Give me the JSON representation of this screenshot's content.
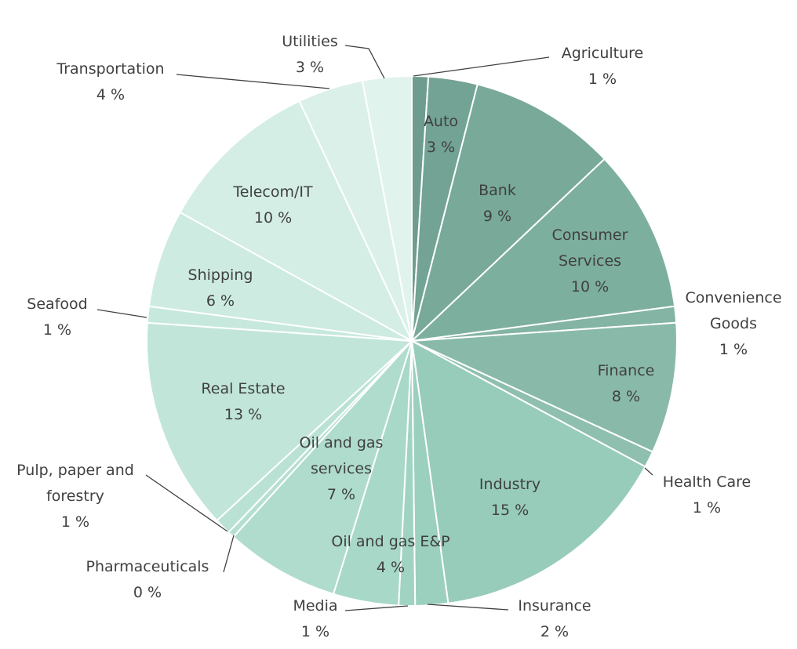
{
  "chart_data": {
    "type": "pie",
    "categories": [
      "Agriculture",
      "Auto",
      "Bank",
      "Consumer Services",
      "Convenience Goods",
      "Finance",
      "Health Care",
      "Industry",
      "Insurance",
      "Media",
      "Oil and gas E&P",
      "Oil and gas services",
      "Pharmaceuticals",
      "Pulp, paper and forestry",
      "Real Estate",
      "Seafood",
      "Shipping",
      "Telecom/IT",
      "Transportation",
      "Utilities"
    ],
    "values": [
      1,
      3,
      9,
      10,
      1,
      8,
      1,
      15,
      2,
      1,
      4,
      7,
      0.4,
      1,
      13,
      1,
      6,
      10,
      4,
      3
    ],
    "value_labels": [
      "1 %",
      "3 %",
      "9 %",
      "10 %",
      "1 %",
      "8 %",
      "1 %",
      "15 %",
      "2 %",
      "1 %",
      "4 %",
      "7 %",
      "0 %",
      "1 %",
      "13 %",
      "1 %",
      "6 %",
      "10 %",
      "4 %",
      "3 %"
    ],
    "colors": [
      "#6e9d8f",
      "#73a394",
      "#78a999",
      "#7daf9f",
      "#83b4a4",
      "#89baa9",
      "#8fbfae",
      "#97cbba",
      "#9bcfbe",
      "#a1d3c3",
      "#a8d8c8",
      "#afdccd",
      "#b5dfd1",
      "#bae2d4",
      "#c1e6d9",
      "#c7e9dd",
      "#cdebe0",
      "#d4eee5",
      "#daf0e8",
      "#e0f3ec"
    ]
  }
}
